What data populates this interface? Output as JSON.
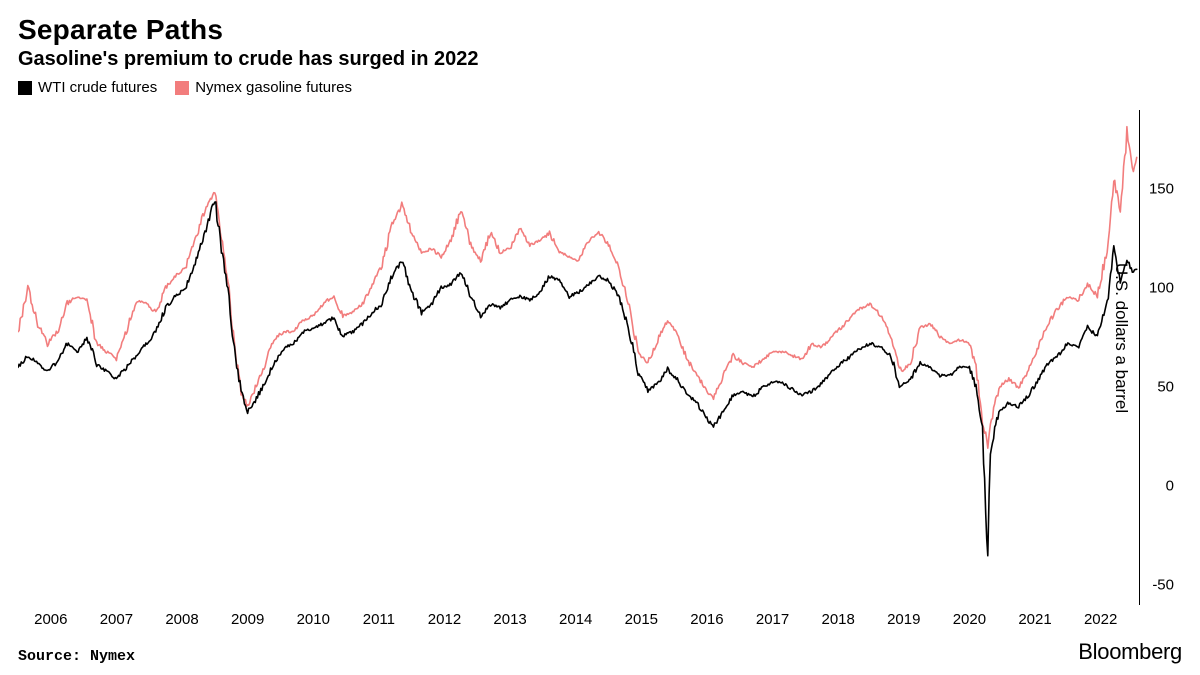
{
  "title": "Separate Paths",
  "subtitle": "Gasoline's premium to crude has surged in 2022",
  "source_label": "Source:  Nymex",
  "brand": "Bloomberg",
  "y_axis_title": "U.S. dollars a barrel",
  "chart": {
    "type": "line",
    "background_color": "#ffffff",
    "grid_color": "#000000",
    "axis_color": "#000000",
    "line_width": 1.6,
    "x": {
      "min": 2005.5,
      "max": 2022.6,
      "ticks": [
        2006,
        2007,
        2008,
        2009,
        2010,
        2011,
        2012,
        2013,
        2014,
        2015,
        2016,
        2017,
        2018,
        2019,
        2020,
        2021,
        2022
      ],
      "tick_labels": [
        "2006",
        "2007",
        "2008",
        "2009",
        "2010",
        "2011",
        "2012",
        "2013",
        "2014",
        "2015",
        "2016",
        "2017",
        "2018",
        "2019",
        "2020",
        "2021",
        "2022"
      ]
    },
    "y": {
      "min": -60,
      "max": 190,
      "ticks": [
        -50,
        0,
        50,
        100,
        150
      ],
      "tick_labels": [
        "-50",
        "0",
        "50",
        "100",
        "150"
      ]
    },
    "series": [
      {
        "name": "WTI crude futures",
        "color": "#000000",
        "data": [
          [
            2005.5,
            60
          ],
          [
            2005.65,
            66
          ],
          [
            2005.8,
            62
          ],
          [
            2005.95,
            58
          ],
          [
            2006.1,
            63
          ],
          [
            2006.25,
            72
          ],
          [
            2006.4,
            68
          ],
          [
            2006.55,
            75
          ],
          [
            2006.7,
            62
          ],
          [
            2006.85,
            58
          ],
          [
            2007.0,
            54
          ],
          [
            2007.15,
            60
          ],
          [
            2007.3,
            66
          ],
          [
            2007.45,
            72
          ],
          [
            2007.6,
            78
          ],
          [
            2007.75,
            90
          ],
          [
            2007.9,
            96
          ],
          [
            2008.05,
            100
          ],
          [
            2008.2,
            112
          ],
          [
            2008.35,
            128
          ],
          [
            2008.5,
            145
          ],
          [
            2008.6,
            120
          ],
          [
            2008.7,
            98
          ],
          [
            2008.8,
            68
          ],
          [
            2008.9,
            48
          ],
          [
            2009.0,
            38
          ],
          [
            2009.1,
            42
          ],
          [
            2009.25,
            52
          ],
          [
            2009.4,
            62
          ],
          [
            2009.55,
            70
          ],
          [
            2009.7,
            72
          ],
          [
            2009.85,
            78
          ],
          [
            2010.0,
            80
          ],
          [
            2010.15,
            82
          ],
          [
            2010.3,
            85
          ],
          [
            2010.45,
            76
          ],
          [
            2010.6,
            78
          ],
          [
            2010.75,
            82
          ],
          [
            2010.9,
            88
          ],
          [
            2011.05,
            92
          ],
          [
            2011.2,
            106
          ],
          [
            2011.35,
            114
          ],
          [
            2011.5,
            98
          ],
          [
            2011.65,
            88
          ],
          [
            2011.8,
            92
          ],
          [
            2011.95,
            100
          ],
          [
            2012.1,
            102
          ],
          [
            2012.25,
            108
          ],
          [
            2012.4,
            96
          ],
          [
            2012.55,
            86
          ],
          [
            2012.7,
            92
          ],
          [
            2012.85,
            90
          ],
          [
            2013.0,
            94
          ],
          [
            2013.15,
            96
          ],
          [
            2013.3,
            94
          ],
          [
            2013.45,
            98
          ],
          [
            2013.6,
            106
          ],
          [
            2013.75,
            104
          ],
          [
            2013.9,
            96
          ],
          [
            2014.05,
            98
          ],
          [
            2014.2,
            102
          ],
          [
            2014.35,
            106
          ],
          [
            2014.5,
            104
          ],
          [
            2014.65,
            96
          ],
          [
            2014.8,
            80
          ],
          [
            2014.95,
            58
          ],
          [
            2015.1,
            48
          ],
          [
            2015.25,
            52
          ],
          [
            2015.4,
            59
          ],
          [
            2015.55,
            54
          ],
          [
            2015.7,
            46
          ],
          [
            2015.85,
            42
          ],
          [
            2016.0,
            34
          ],
          [
            2016.1,
            30
          ],
          [
            2016.25,
            38
          ],
          [
            2016.4,
            46
          ],
          [
            2016.55,
            48
          ],
          [
            2016.7,
            45
          ],
          [
            2016.85,
            50
          ],
          [
            2017.0,
            53
          ],
          [
            2017.15,
            52
          ],
          [
            2017.3,
            49
          ],
          [
            2017.45,
            46
          ],
          [
            2017.6,
            48
          ],
          [
            2017.75,
            52
          ],
          [
            2017.9,
            58
          ],
          [
            2018.05,
            62
          ],
          [
            2018.2,
            66
          ],
          [
            2018.35,
            70
          ],
          [
            2018.5,
            72
          ],
          [
            2018.65,
            70
          ],
          [
            2018.8,
            66
          ],
          [
            2018.95,
            50
          ],
          [
            2019.1,
            54
          ],
          [
            2019.25,
            62
          ],
          [
            2019.4,
            60
          ],
          [
            2019.55,
            56
          ],
          [
            2019.7,
            56
          ],
          [
            2019.85,
            60
          ],
          [
            2020.0,
            60
          ],
          [
            2020.1,
            50
          ],
          [
            2020.2,
            28
          ],
          [
            2020.28,
            -37
          ],
          [
            2020.32,
            18
          ],
          [
            2020.45,
            38
          ],
          [
            2020.6,
            42
          ],
          [
            2020.75,
            40
          ],
          [
            2020.9,
            46
          ],
          [
            2021.05,
            54
          ],
          [
            2021.2,
            62
          ],
          [
            2021.35,
            66
          ],
          [
            2021.5,
            72
          ],
          [
            2021.65,
            70
          ],
          [
            2021.8,
            80
          ],
          [
            2021.95,
            76
          ],
          [
            2022.1,
            92
          ],
          [
            2022.2,
            120
          ],
          [
            2022.3,
            104
          ],
          [
            2022.4,
            114
          ],
          [
            2022.5,
            108
          ],
          [
            2022.55,
            110
          ]
        ]
      },
      {
        "name": "Nymex gasoline futures",
        "color": "#f27d7d",
        "data": [
          [
            2005.5,
            78
          ],
          [
            2005.65,
            100
          ],
          [
            2005.8,
            82
          ],
          [
            2005.95,
            72
          ],
          [
            2006.1,
            78
          ],
          [
            2006.25,
            92
          ],
          [
            2006.4,
            96
          ],
          [
            2006.55,
            94
          ],
          [
            2006.7,
            72
          ],
          [
            2006.85,
            68
          ],
          [
            2007.0,
            64
          ],
          [
            2007.15,
            78
          ],
          [
            2007.3,
            94
          ],
          [
            2007.45,
            92
          ],
          [
            2007.6,
            88
          ],
          [
            2007.75,
            100
          ],
          [
            2007.9,
            106
          ],
          [
            2008.05,
            110
          ],
          [
            2008.2,
            124
          ],
          [
            2008.35,
            140
          ],
          [
            2008.5,
            148
          ],
          [
            2008.6,
            126
          ],
          [
            2008.7,
            104
          ],
          [
            2008.8,
            70
          ],
          [
            2008.9,
            48
          ],
          [
            2009.0,
            40
          ],
          [
            2009.1,
            48
          ],
          [
            2009.25,
            60
          ],
          [
            2009.4,
            74
          ],
          [
            2009.55,
            78
          ],
          [
            2009.7,
            78
          ],
          [
            2009.85,
            84
          ],
          [
            2010.0,
            86
          ],
          [
            2010.15,
            92
          ],
          [
            2010.3,
            96
          ],
          [
            2010.45,
            86
          ],
          [
            2010.6,
            88
          ],
          [
            2010.75,
            92
          ],
          [
            2010.9,
            102
          ],
          [
            2011.05,
            112
          ],
          [
            2011.2,
            132
          ],
          [
            2011.35,
            142
          ],
          [
            2011.5,
            128
          ],
          [
            2011.65,
            118
          ],
          [
            2011.8,
            120
          ],
          [
            2011.95,
            116
          ],
          [
            2012.1,
            124
          ],
          [
            2012.25,
            140
          ],
          [
            2012.4,
            122
          ],
          [
            2012.55,
            114
          ],
          [
            2012.7,
            128
          ],
          [
            2012.85,
            118
          ],
          [
            2013.0,
            120
          ],
          [
            2013.15,
            130
          ],
          [
            2013.3,
            122
          ],
          [
            2013.45,
            124
          ],
          [
            2013.6,
            128
          ],
          [
            2013.75,
            118
          ],
          [
            2013.9,
            116
          ],
          [
            2014.05,
            114
          ],
          [
            2014.2,
            124
          ],
          [
            2014.35,
            128
          ],
          [
            2014.5,
            122
          ],
          [
            2014.65,
            112
          ],
          [
            2014.8,
            92
          ],
          [
            2014.95,
            68
          ],
          [
            2015.1,
            62
          ],
          [
            2015.25,
            74
          ],
          [
            2015.4,
            84
          ],
          [
            2015.55,
            76
          ],
          [
            2015.7,
            64
          ],
          [
            2015.85,
            56
          ],
          [
            2016.0,
            48
          ],
          [
            2016.1,
            44
          ],
          [
            2016.25,
            56
          ],
          [
            2016.4,
            66
          ],
          [
            2016.55,
            62
          ],
          [
            2016.7,
            60
          ],
          [
            2016.85,
            64
          ],
          [
            2017.0,
            68
          ],
          [
            2017.15,
            68
          ],
          [
            2017.3,
            66
          ],
          [
            2017.45,
            64
          ],
          [
            2017.6,
            72
          ],
          [
            2017.75,
            70
          ],
          [
            2017.9,
            76
          ],
          [
            2018.05,
            80
          ],
          [
            2018.2,
            86
          ],
          [
            2018.35,
            90
          ],
          [
            2018.5,
            92
          ],
          [
            2018.65,
            86
          ],
          [
            2018.8,
            76
          ],
          [
            2018.95,
            58
          ],
          [
            2019.1,
            62
          ],
          [
            2019.25,
            80
          ],
          [
            2019.4,
            82
          ],
          [
            2019.55,
            76
          ],
          [
            2019.7,
            72
          ],
          [
            2019.85,
            74
          ],
          [
            2020.0,
            72
          ],
          [
            2020.1,
            60
          ],
          [
            2020.2,
            34
          ],
          [
            2020.28,
            20
          ],
          [
            2020.32,
            30
          ],
          [
            2020.45,
            50
          ],
          [
            2020.6,
            54
          ],
          [
            2020.75,
            50
          ],
          [
            2020.9,
            58
          ],
          [
            2021.05,
            70
          ],
          [
            2021.2,
            82
          ],
          [
            2021.35,
            90
          ],
          [
            2021.5,
            96
          ],
          [
            2021.65,
            94
          ],
          [
            2021.8,
            102
          ],
          [
            2021.95,
            96
          ],
          [
            2022.1,
            120
          ],
          [
            2022.2,
            156
          ],
          [
            2022.3,
            138
          ],
          [
            2022.4,
            178
          ],
          [
            2022.5,
            160
          ],
          [
            2022.55,
            166
          ]
        ]
      }
    ]
  }
}
